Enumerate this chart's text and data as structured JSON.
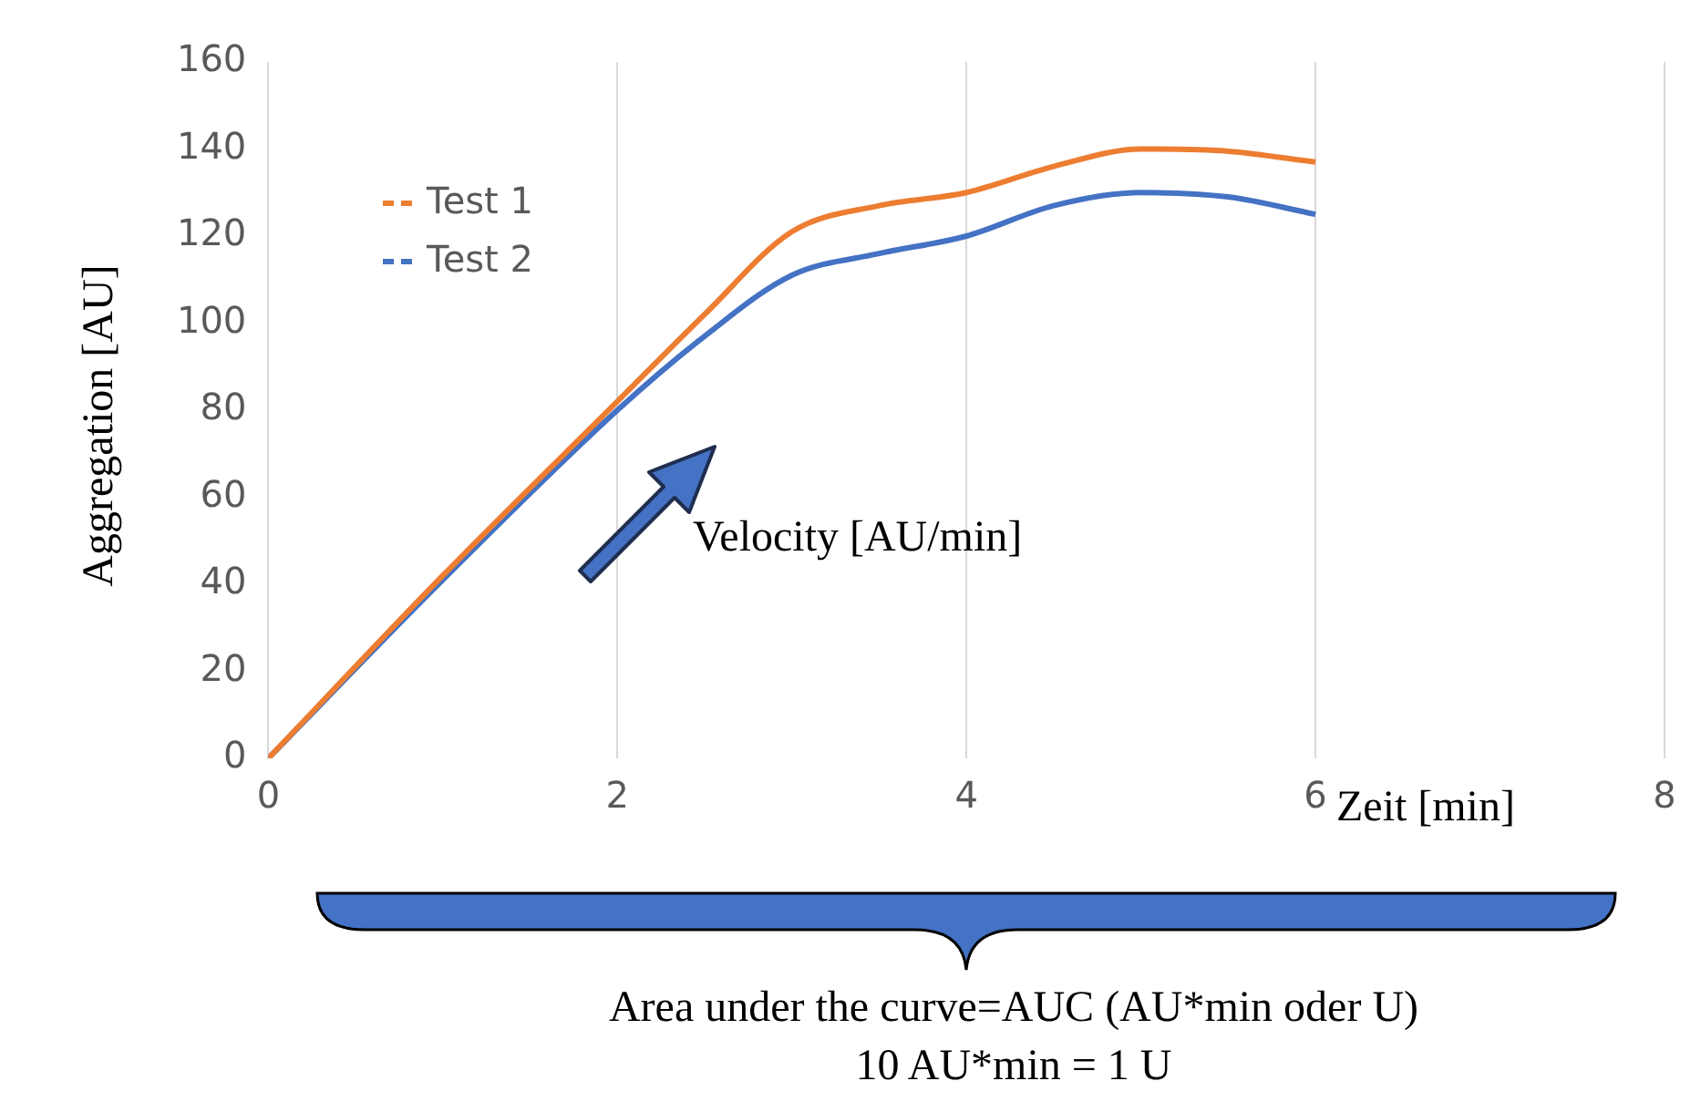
{
  "chart_data": {
    "type": "line",
    "xlabel": "Zeit [min]",
    "ylabel": "Aggregation [AU]",
    "xlim": [
      0,
      8
    ],
    "xticks": [
      0,
      2,
      4,
      6,
      8
    ],
    "ylim": [
      0,
      160
    ],
    "yticks": [
      0,
      20,
      40,
      60,
      80,
      100,
      120,
      140,
      160
    ],
    "grid": "x",
    "legend": "top left",
    "marker": "none",
    "series": [
      {
        "name": "Test 1",
        "color": "#ed7d31",
        "x": [
          0,
          1,
          2,
          2.5,
          3,
          3.5,
          4,
          4.5,
          5,
          5.5,
          6
        ],
        "values": [
          0,
          42,
          82,
          102,
          121,
          127,
          130,
          136,
          140,
          139.5,
          137
        ]
      },
      {
        "name": "Test 2",
        "color": "#4472c4",
        "x": [
          0,
          1,
          2,
          2.5,
          3,
          3.5,
          4,
          4.5,
          5,
          5.5,
          6
        ],
        "values": [
          0,
          41,
          80,
          97,
          111,
          116,
          120,
          127,
          130,
          129,
          125
        ]
      }
    ],
    "annotations": [
      "Velocity [AU/min]",
      "Area under the curve=AUC (AU*min oder U)",
      "10 AU*min = 1 U"
    ]
  }
}
